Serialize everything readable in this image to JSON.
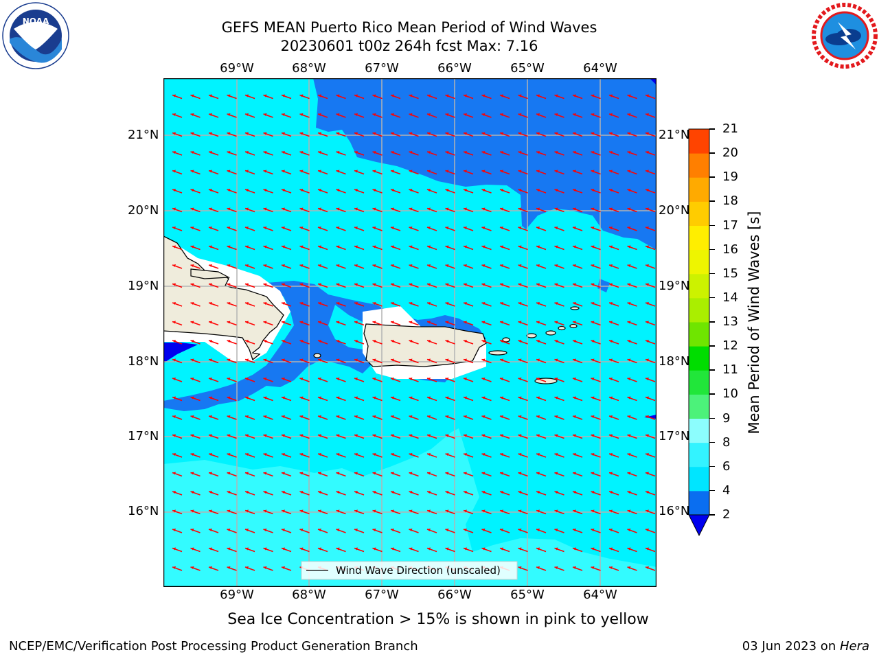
{
  "title": {
    "line1": "GEFS MEAN Puerto Rico Mean Period of Wind Waves",
    "line2": "20230601 t00z 264h fcst   Max: 7.16"
  },
  "logos": {
    "left": {
      "icon": "noaa-logo",
      "text": "NOAA",
      "ring_text": "NATIONAL OCEANIC AND ATMOSPHERIC ADMINISTRATION · U.S. DEPARTMENT OF COMMERCE"
    },
    "right": {
      "icon": "nws-logo",
      "ring_text": "NATIONAL WEATHER SERVICE"
    }
  },
  "map": {
    "lon_labels": [
      "69°W",
      "68°W",
      "67°W",
      "66°W",
      "65°W",
      "64°W"
    ],
    "lat_labels": [
      "21°N",
      "20°N",
      "19°N",
      "18°N",
      "17°N",
      "16°N"
    ],
    "legend_label": "Wind Wave Direction (unscaled)",
    "land_color": "#efecdc",
    "vector_color": "#ff0000"
  },
  "colorbar": {
    "label": "Mean Period of Wind Waves [s]",
    "ticks": [
      "2",
      "4",
      "6",
      "8",
      "9",
      "10",
      "11",
      "12",
      "13",
      "14",
      "15",
      "16",
      "17",
      "18",
      "19",
      "20",
      "21"
    ],
    "colors": [
      "#0a6ef0",
      "#00e5ff",
      "#33f3ff",
      "#8cfdfd",
      "#4cf27a",
      "#21e63a",
      "#00dd00",
      "#6fe500",
      "#aaee00",
      "#ccf200",
      "#eef500",
      "#ffee00",
      "#ffcc00",
      "#ffaa00",
      "#ff7f00",
      "#ff4400",
      "#ff0000"
    ],
    "extend_color": "#0000ee"
  },
  "ice_note": "Sea Ice Concentration > 15% is shown in pink to yellow",
  "footer": {
    "left": "NCEP/EMC/Verification Post Processing Product Generation Branch",
    "right_prefix": "03 Jun 2023 on ",
    "right_host": "Hera"
  }
}
